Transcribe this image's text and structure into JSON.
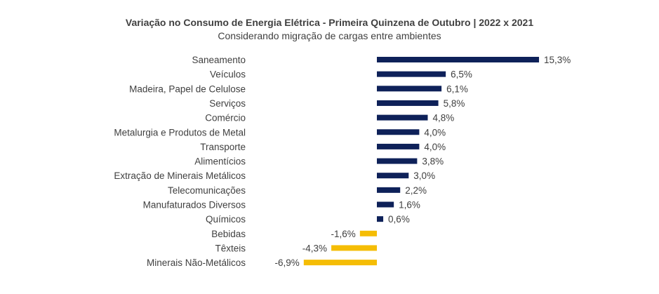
{
  "chart_data": {
    "type": "bar",
    "orientation": "horizontal",
    "title": "Variação no Consumo de Energia Elétrica -  Primeira Quinzena de Outubro | 2022 x 2021",
    "subtitle": "Considerando migração de cargas entre ambientes",
    "categories": [
      "Saneamento",
      "Veículos",
      "Madeira, Papel de Celulose",
      "Serviços",
      "Comércio",
      "Metalurgia e Produtos de Metal",
      "Transporte",
      "Alimentícios",
      "Extração de Minerais Metálicos",
      "Telecomunicações",
      "Manufaturados Diversos",
      "Químicos",
      "Bebidas",
      "Têxteis",
      "Minerais Não-Metálicos"
    ],
    "values": [
      15.3,
      6.5,
      6.1,
      5.8,
      4.8,
      4.0,
      4.0,
      3.8,
      3.0,
      2.2,
      1.6,
      0.6,
      -1.6,
      -4.3,
      -6.9
    ],
    "data_labels": [
      "15,3%",
      "6,5%",
      "6,1%",
      "5,8%",
      "4,8%",
      "4,0%",
      "4,0%",
      "3,8%",
      "3,0%",
      "2,2%",
      "1,6%",
      "0,6%",
      "-1,6%",
      "-4,3%",
      "-6,9%"
    ],
    "colors": {
      "positive": "#0E2159",
      "negative": "#F5BD05"
    },
    "grid": false,
    "legend": "none"
  }
}
